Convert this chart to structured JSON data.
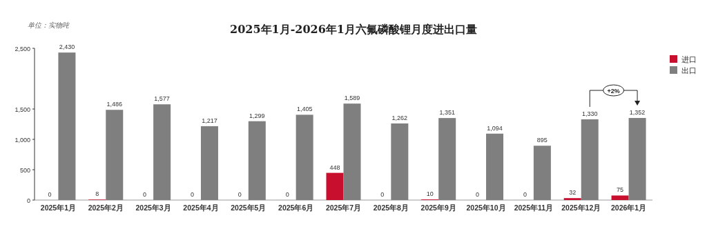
{
  "chart_data": {
    "type": "bar",
    "title": "2025年1月-2026年1月六氟磷酸锂月度进出口量",
    "categories": [
      "2025年1月",
      "2025年2月",
      "2025年3月",
      "2025年4月",
      "2025年5月",
      "2025年6月",
      "2025年7月",
      "2025年8月",
      "2025年9月",
      "2025年10月",
      "2025年11月",
      "2025年12月",
      "2026年1月"
    ],
    "series": [
      {
        "name": "进口",
        "color": "#c8102e",
        "values": [
          0,
          8,
          0,
          0,
          0,
          0,
          448,
          0,
          10,
          0,
          0,
          32,
          75
        ],
        "value_labels": [
          "0",
          "8",
          "0",
          "0",
          "0",
          "0",
          "448",
          "0",
          "10",
          "0",
          "0",
          "32",
          "75"
        ]
      },
      {
        "name": "出口",
        "color": "#7f7f7f",
        "values": [
          2430,
          1486,
          1577,
          1217,
          1299,
          1405,
          1589,
          1262,
          1351,
          1094,
          895,
          1330,
          1352
        ],
        "value_labels": [
          "2,430",
          "1,486",
          "1,577",
          "1,217",
          "1,299",
          "1,405",
          "1,589",
          "1,262",
          "1,351",
          "1,094",
          "895",
          "1,330",
          "1,352"
        ]
      }
    ],
    "ylim": [
      0,
      2500
    ],
    "yticks": [
      0,
      500,
      {
        "value": 1000,
        "label": "1,000"
      },
      {
        "value": 1500,
        "label": "1,500"
      },
      {
        "value": 2500,
        "label": "2,500"
      }
    ],
    "legend": "top right",
    "annotations": [
      "单位：实物吨",
      "+2%"
    ]
  }
}
